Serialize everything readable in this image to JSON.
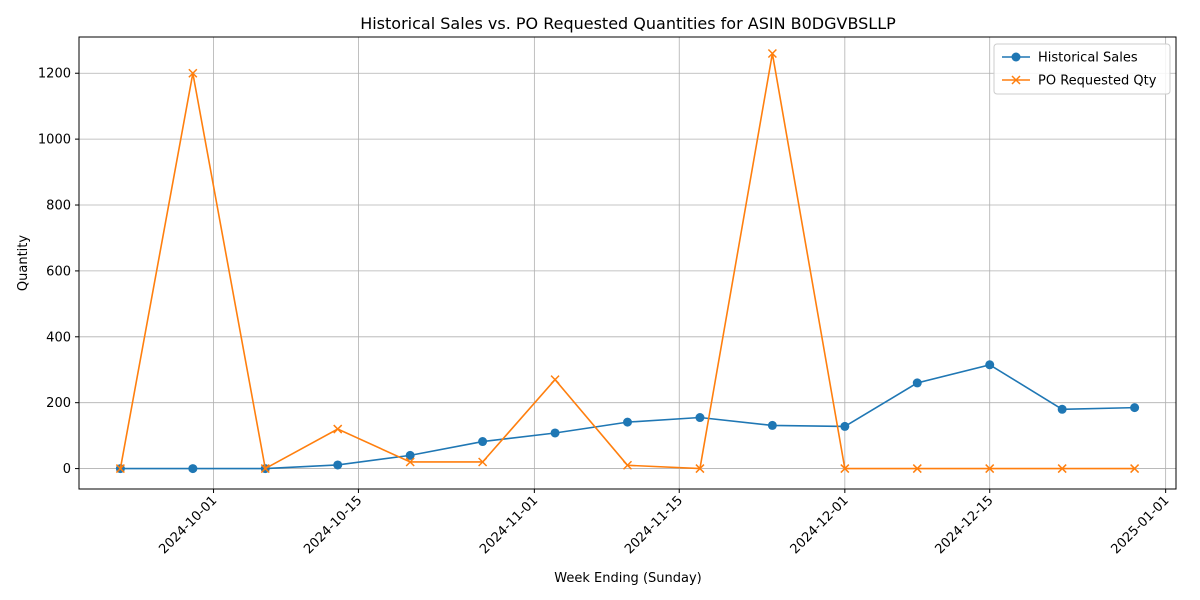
{
  "chart_data": {
    "type": "line",
    "title": "Historical Sales vs. PO Requested Quantities for ASIN B0DGVBSLLP",
    "xlabel": "Week Ending (Sunday)",
    "ylabel": "Quantity",
    "x": [
      "2024-09-22",
      "2024-09-29",
      "2024-10-06",
      "2024-10-13",
      "2024-10-20",
      "2024-10-27",
      "2024-11-03",
      "2024-11-10",
      "2024-11-17",
      "2024-11-24",
      "2024-12-01",
      "2024-12-08",
      "2024-12-15",
      "2024-12-22",
      "2024-12-29"
    ],
    "xticks": [
      "2024-10-01",
      "2024-10-15",
      "2024-11-01",
      "2024-11-15",
      "2024-12-01",
      "2024-12-15",
      "2025-01-01"
    ],
    "xlim": [
      "2024-09-18",
      "2025-01-02"
    ],
    "yticks": [
      0,
      200,
      400,
      600,
      800,
      1000,
      1200
    ],
    "ylim": [
      -62,
      1310
    ],
    "grid": true,
    "legend_position": "top-right",
    "series": [
      {
        "name": "Historical Sales",
        "color": "#1f77b4",
        "marker": "circle",
        "values": [
          0,
          0,
          0,
          11,
          40,
          82,
          108,
          141,
          155,
          131,
          128,
          260,
          315,
          180,
          185
        ]
      },
      {
        "name": "PO Requested Qty",
        "color": "#ff7f0e",
        "marker": "x",
        "values": [
          0,
          1200,
          0,
          120,
          20,
          20,
          270,
          10,
          0,
          1260,
          0,
          0,
          0,
          0,
          0
        ]
      }
    ]
  }
}
